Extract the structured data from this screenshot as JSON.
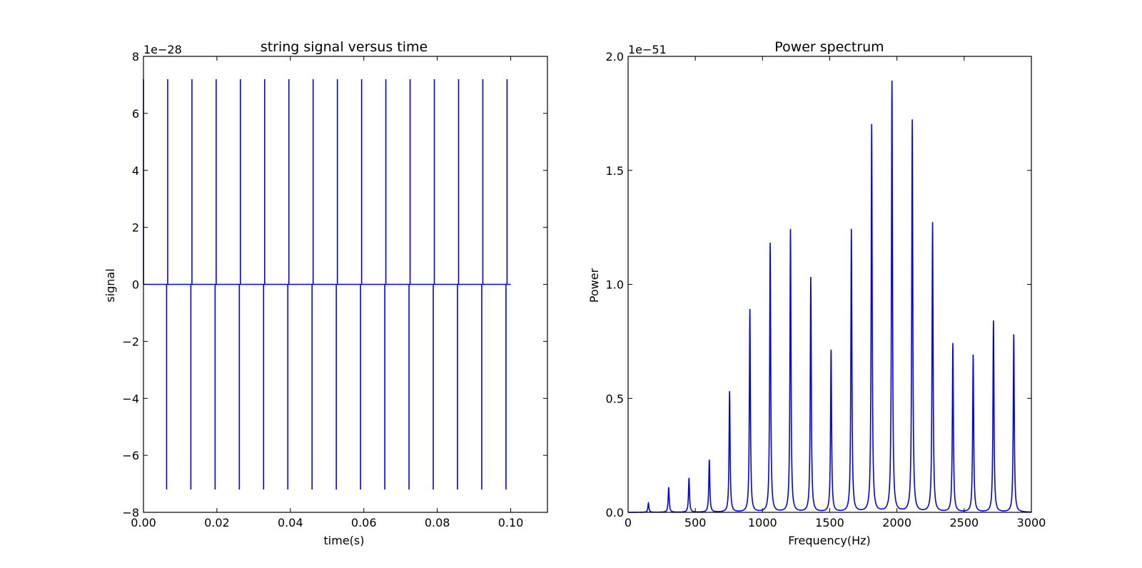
{
  "chart_data": [
    {
      "type": "line",
      "title": "string signal versus time",
      "xlabel": "time(s)",
      "ylabel": "signal",
      "offset_label": "1e−28",
      "xlim": [
        0,
        0.11
      ],
      "ylim": [
        -8,
        8
      ],
      "xticks": [
        0.0,
        0.02,
        0.04,
        0.06,
        0.08,
        0.1
      ],
      "xtick_labels": [
        "0.00",
        "0.02",
        "0.04",
        "0.06",
        "0.08",
        "0.10"
      ],
      "yticks": [
        -8,
        -6,
        -4,
        -2,
        0,
        2,
        4,
        6,
        8
      ],
      "ytick_labels": [
        "−8",
        "−6",
        "−4",
        "−2",
        "0",
        "2",
        "4",
        "6",
        "8"
      ],
      "color": "#0000ff",
      "x_start": 0.0,
      "x_end": 0.1,
      "baseline": 0,
      "pulse_times": [
        0.0,
        0.0066,
        0.0132,
        0.0198,
        0.0264,
        0.033,
        0.0396,
        0.0462,
        0.0528,
        0.0594,
        0.066,
        0.0726,
        0.0792,
        0.0858,
        0.0924,
        0.099
      ],
      "pulse_high": 7.2,
      "pulse_low": -7.2
    },
    {
      "type": "line",
      "title": "Power spectrum",
      "xlabel": "Frequency(Hz)",
      "ylabel": "Power",
      "offset_label": "1e−51",
      "xlim": [
        0,
        3000
      ],
      "ylim": [
        0,
        2.0
      ],
      "xticks": [
        0,
        500,
        1000,
        1500,
        2000,
        2500,
        3000
      ],
      "xtick_labels": [
        "0",
        "500",
        "1000",
        "1500",
        "2000",
        "2500",
        "3000"
      ],
      "yticks": [
        0.0,
        0.5,
        1.0,
        1.5,
        2.0
      ],
      "ytick_labels": [
        "0.0",
        "0.5",
        "1.0",
        "1.5",
        "2.0"
      ],
      "color": "#0000ff",
      "peaks": [
        {
          "f": 151,
          "p": 0.04
        },
        {
          "f": 302,
          "p": 0.11
        },
        {
          "f": 453,
          "p": 0.15
        },
        {
          "f": 604,
          "p": 0.23
        },
        {
          "f": 755,
          "p": 0.53
        },
        {
          "f": 906,
          "p": 0.89
        },
        {
          "f": 1057,
          "p": 1.18
        },
        {
          "f": 1208,
          "p": 1.24
        },
        {
          "f": 1359,
          "p": 1.03
        },
        {
          "f": 1510,
          "p": 0.71
        },
        {
          "f": 1661,
          "p": 1.24
        },
        {
          "f": 1812,
          "p": 1.7
        },
        {
          "f": 1963,
          "p": 1.89
        },
        {
          "f": 2114,
          "p": 1.72
        },
        {
          "f": 2265,
          "p": 1.27
        },
        {
          "f": 2416,
          "p": 0.74
        },
        {
          "f": 2567,
          "p": 0.69
        },
        {
          "f": 2718,
          "p": 0.84
        },
        {
          "f": 2869,
          "p": 0.78
        }
      ]
    }
  ]
}
